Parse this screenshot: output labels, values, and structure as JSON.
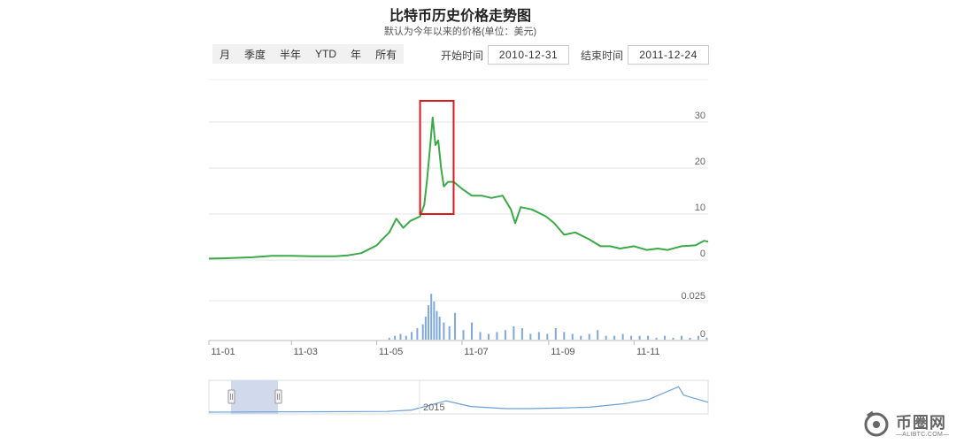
{
  "page": {
    "title": "比特币历史价格走势图",
    "subtitle": "默认为今年以来的价格(单位：美元)",
    "range_buttons": [
      "月",
      "季度",
      "半年",
      "YTD",
      "年",
      "所有"
    ],
    "start_label": "开始时间",
    "start_date": "2010-12-31",
    "end_label": "结束时间",
    "end_date": "2011-12-24",
    "navigator_label": "2015",
    "watermark": {
      "text": "币圈网",
      "sub": "—ALIBTC.COM—"
    }
  },
  "chart_data": [
    {
      "type": "line",
      "title": "比特币历史价格走势图",
      "xlabel": "",
      "ylabel": "",
      "ylim": [
        0,
        30
      ],
      "y_ticks": [
        "0",
        "10",
        "20",
        "30"
      ],
      "x_tick_labels": [
        "11-01",
        "11-03",
        "11-05",
        "11-07",
        "11-09",
        "11-11"
      ],
      "grid": true,
      "series_color": "#3aaa47",
      "highlight_box": {
        "from": "2011-06-01",
        "to": "2011-06-25",
        "color": "#d9191f"
      },
      "x": [
        "2011-01-01",
        "2011-01-15",
        "2011-02-01",
        "2011-02-15",
        "2011-03-01",
        "2011-03-15",
        "2011-04-01",
        "2011-04-10",
        "2011-04-20",
        "2011-05-01",
        "2011-05-05",
        "2011-05-10",
        "2011-05-15",
        "2011-05-20",
        "2011-05-25",
        "2011-06-01",
        "2011-06-04",
        "2011-06-06",
        "2011-06-08",
        "2011-06-10",
        "2011-06-12",
        "2011-06-14",
        "2011-06-16",
        "2011-06-18",
        "2011-06-21",
        "2011-06-25",
        "2011-07-01",
        "2011-07-08",
        "2011-07-15",
        "2011-07-22",
        "2011-07-30",
        "2011-08-05",
        "2011-08-08",
        "2011-08-12",
        "2011-08-20",
        "2011-08-30",
        "2011-09-05",
        "2011-09-12",
        "2011-09-20",
        "2011-09-30",
        "2011-10-08",
        "2011-10-15",
        "2011-10-22",
        "2011-11-01",
        "2011-11-10",
        "2011-11-18",
        "2011-11-25",
        "2011-12-05",
        "2011-12-15",
        "2011-12-21",
        "2011-12-24"
      ],
      "values": [
        0.3,
        0.4,
        0.6,
        0.9,
        0.9,
        0.8,
        0.8,
        1.0,
        1.5,
        3.2,
        4.5,
        6.0,
        9.0,
        7.0,
        8.5,
        9.5,
        12.0,
        17.5,
        24.0,
        31.0,
        25.0,
        26.0,
        20.0,
        16.0,
        17.0,
        17.0,
        15.5,
        14.0,
        14.0,
        13.5,
        14.0,
        11.0,
        8.0,
        11.5,
        11.0,
        9.5,
        8.0,
        5.5,
        6.0,
        4.5,
        3.0,
        3.0,
        2.5,
        3.0,
        2.2,
        2.5,
        2.2,
        3.0,
        3.2,
        4.2,
        4.0
      ]
    },
    {
      "type": "bar",
      "title": "",
      "xlabel": "",
      "ylabel": "",
      "ylim": [
        0,
        0.025
      ],
      "y_ticks": [
        "0",
        "0.025"
      ],
      "series_color": "#7fa9db",
      "x": [
        "2011-05-10",
        "2011-05-14",
        "2011-05-18",
        "2011-05-22",
        "2011-05-26",
        "2011-05-30",
        "2011-06-03",
        "2011-06-05",
        "2011-06-07",
        "2011-06-09",
        "2011-06-11",
        "2011-06-13",
        "2011-06-15",
        "2011-06-18",
        "2011-06-22",
        "2011-06-26",
        "2011-07-02",
        "2011-07-08",
        "2011-07-14",
        "2011-07-20",
        "2011-07-26",
        "2011-08-01",
        "2011-08-07",
        "2011-08-13",
        "2011-08-19",
        "2011-08-25",
        "2011-08-31",
        "2011-09-06",
        "2011-09-12",
        "2011-09-18",
        "2011-09-24",
        "2011-09-30",
        "2011-10-06",
        "2011-10-12",
        "2011-10-18",
        "2011-10-24",
        "2011-10-30",
        "2011-11-05",
        "2011-11-11",
        "2011-11-17",
        "2011-11-23",
        "2011-11-29",
        "2011-12-05",
        "2011-12-11",
        "2011-12-17",
        "2011-12-23"
      ],
      "values": [
        0.001,
        0.002,
        0.003,
        0.002,
        0.004,
        0.006,
        0.008,
        0.012,
        0.018,
        0.024,
        0.02,
        0.015,
        0.012,
        0.009,
        0.007,
        0.014,
        0.005,
        0.009,
        0.004,
        0.003,
        0.004,
        0.005,
        0.007,
        0.006,
        0.003,
        0.004,
        0.003,
        0.006,
        0.004,
        0.003,
        0.002,
        0.003,
        0.005,
        0.002,
        0.002,
        0.003,
        0.002,
        0.002,
        0.002,
        0.001,
        0.002,
        0.001,
        0.002,
        0.001,
        0.002,
        0.001
      ]
    },
    {
      "type": "area",
      "title": "",
      "xlabel": "",
      "ylabel": "",
      "series_color": "#6aa0d8",
      "selected_range": [
        "2010-12-31",
        "2011-12-24"
      ],
      "x": [
        "2010",
        "2011",
        "2012",
        "2013",
        "2013-06",
        "2014",
        "2014-06",
        "2015",
        "2015-06",
        "2016",
        "2016-06",
        "2017",
        "2017-06",
        "2017-12",
        "2018",
        "2018-06"
      ],
      "values": [
        0,
        0.2,
        0.3,
        0.5,
        1.5,
        8.0,
        4.0,
        2.5,
        2.5,
        3.0,
        3.5,
        6.0,
        9.0,
        18.0,
        12.0,
        7.0
      ]
    }
  ]
}
